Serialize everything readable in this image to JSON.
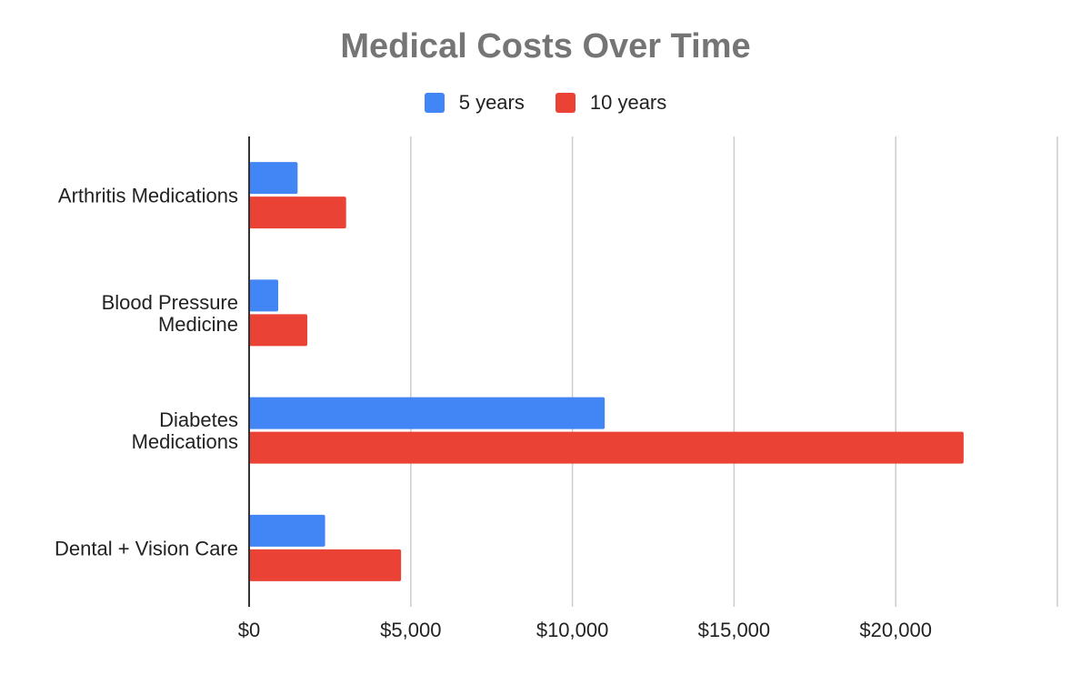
{
  "chart_data": {
    "type": "bar",
    "orientation": "horizontal",
    "title": "Medical Costs Over Time",
    "categories": [
      [
        "Arthritis Medications"
      ],
      [
        "Blood Pressure",
        "Medicine"
      ],
      [
        "Diabetes",
        "Medications"
      ],
      [
        "Dental + Vision Care"
      ]
    ],
    "series": [
      {
        "name": "5 years",
        "color": "#4285f4",
        "values": [
          1500,
          900,
          11000,
          2350
        ]
      },
      {
        "name": "10 years",
        "color": "#ea4335",
        "values": [
          3000,
          1800,
          22100,
          4700
        ]
      }
    ],
    "xlim": [
      0,
      25000
    ],
    "x_ticks": [
      0,
      5000,
      10000,
      15000,
      20000
    ],
    "x_tick_labels": [
      "$0",
      "$5,000",
      "$10,000",
      "$15,000",
      "$20,000"
    ],
    "xlabel": "",
    "ylabel": "",
    "legend_position": "top",
    "grid": "vertical"
  }
}
